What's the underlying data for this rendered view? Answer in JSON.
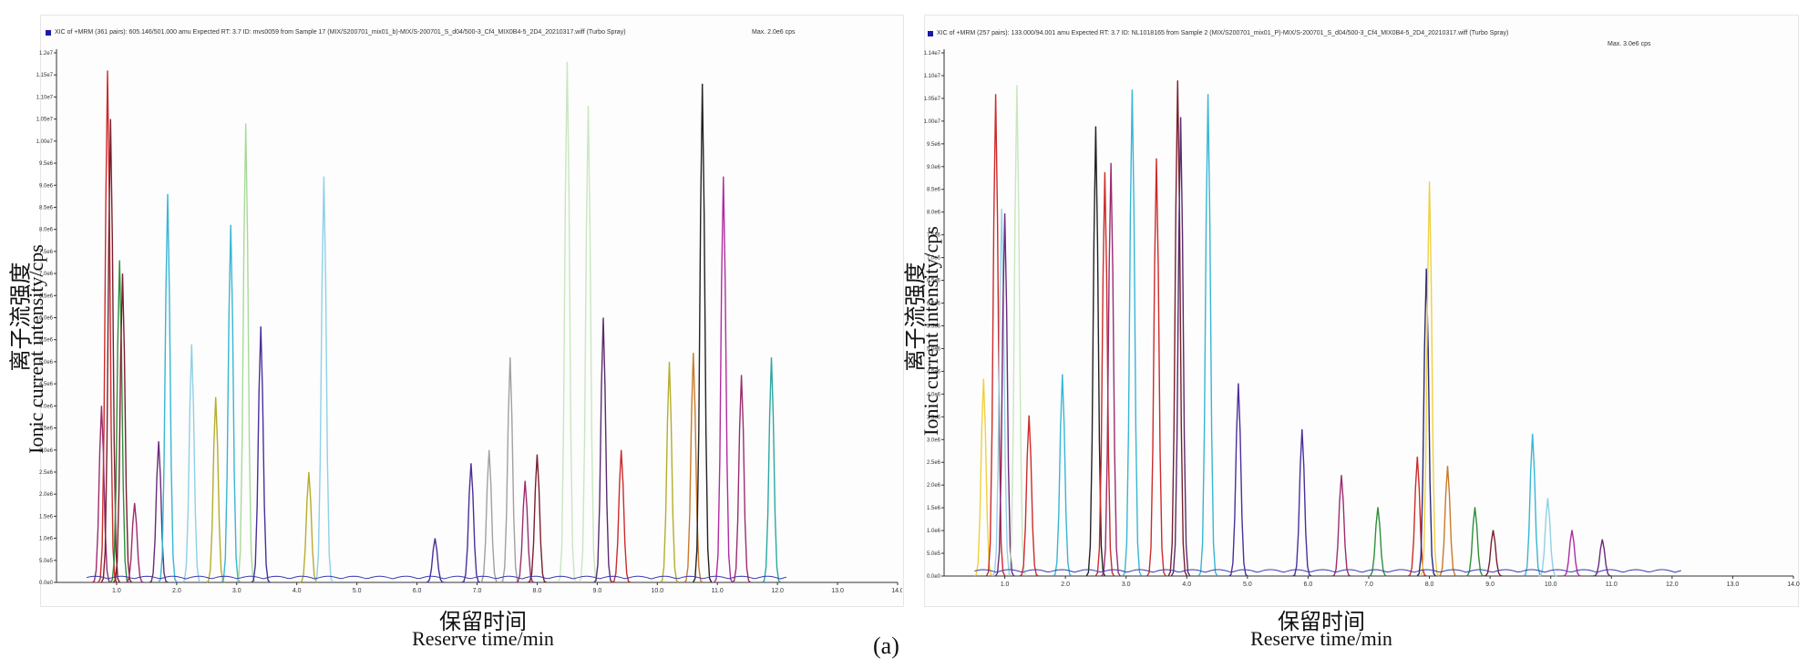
{
  "figure_label": "(a)",
  "chart_data": [
    {
      "type": "line",
      "header": "XIC of +MRM (361 pairs): 605.146/501.000 amu Expected RT: 3.7 ID: mvs0059 from Sample 17 (MIX/S200701_mix01_b)-MIX/S-200701_S_d04/500-3_Cf4_MIX0B4-5_2D4_20210317.wiff (Turbo Spray)",
      "max_note": "Max. 2.0e6 cps",
      "ylabel_cn": "离子流强度",
      "ylabel_en": "Ionic  current  intensity/cps",
      "xlabel_cn": "保留时间",
      "xlabel_en": "Reserve  time/min",
      "xlim": [
        0,
        14.0
      ],
      "ylim": [
        0,
        12000000.0
      ],
      "xticks": [
        "1.0",
        "2.0",
        "3.0",
        "4.0",
        "5.0",
        "6.0",
        "7.0",
        "8.0",
        "9.0",
        "10.0",
        "11.0",
        "12.0",
        "13.0",
        "14.0"
      ],
      "yticks": [
        "0.0e0",
        "5.0e5",
        "1.0e6",
        "1.5e6",
        "2.0e6",
        "2.5e6",
        "3.0e6",
        "3.5e6",
        "4.0e6",
        "4.5e6",
        "5.0e6",
        "5.5e6",
        "6.0e6",
        "6.5e6",
        "7.0e6",
        "7.5e6",
        "8.0e6",
        "8.5e6",
        "9.0e6",
        "9.5e6",
        "1.00e7",
        "1.05e7",
        "1.10e7",
        "1.15e7",
        "1.2e7"
      ],
      "peaks": [
        {
          "rt": 0.75,
          "height": 4000000.0,
          "color": "#9b2d6f"
        },
        {
          "rt": 0.85,
          "height": 11600000.0,
          "color": "#cc2b2b"
        },
        {
          "rt": 0.9,
          "height": 10500000.0,
          "color": "#7a1f2e"
        },
        {
          "rt": 1.05,
          "height": 7300000.0,
          "color": "#2f8f3a"
        },
        {
          "rt": 1.1,
          "height": 7000000.0,
          "color": "#7a1f2e"
        },
        {
          "rt": 1.3,
          "height": 1800000.0,
          "color": "#9b2d6f"
        },
        {
          "rt": 1.7,
          "height": 3200000.0,
          "color": "#6b2a7a"
        },
        {
          "rt": 1.85,
          "height": 8800000.0,
          "color": "#37b6d4"
        },
        {
          "rt": 2.25,
          "height": 5400000.0,
          "color": "#8fd0e6"
        },
        {
          "rt": 2.65,
          "height": 4200000.0,
          "color": "#b5ad2b"
        },
        {
          "rt": 2.9,
          "height": 8100000.0,
          "color": "#37b6d4"
        },
        {
          "rt": 3.15,
          "height": 10400000.0,
          "color": "#a9d99a"
        },
        {
          "rt": 3.4,
          "height": 5800000.0,
          "color": "#4a2f9a"
        },
        {
          "rt": 4.2,
          "height": 2500000.0,
          "color": "#b5ad2b"
        },
        {
          "rt": 4.45,
          "height": 9200000.0,
          "color": "#8fd0e6"
        },
        {
          "rt": 6.3,
          "height": 1000000.0,
          "color": "#4a2f9a"
        },
        {
          "rt": 6.9,
          "height": 2700000.0,
          "color": "#4a2f9a"
        },
        {
          "rt": 7.2,
          "height": 3000000.0,
          "color": "#a0a0a0"
        },
        {
          "rt": 7.55,
          "height": 5100000.0,
          "color": "#a0a0a0"
        },
        {
          "rt": 7.8,
          "height": 2300000.0,
          "color": "#9b2d6f"
        },
        {
          "rt": 8.0,
          "height": 2900000.0,
          "color": "#7a1f2e"
        },
        {
          "rt": 8.5,
          "height": 11800000.0,
          "color": "#c8e6c0"
        },
        {
          "rt": 8.85,
          "height": 10800000.0,
          "color": "#c8e6c0"
        },
        {
          "rt": 9.1,
          "height": 6000000.0,
          "color": "#5a2b6e"
        },
        {
          "rt": 9.4,
          "height": 3000000.0,
          "color": "#cc2b2b"
        },
        {
          "rt": 10.2,
          "height": 5000000.0,
          "color": "#b5ad2b"
        },
        {
          "rt": 10.6,
          "height": 5200000.0,
          "color": "#c87a2b"
        },
        {
          "rt": 10.75,
          "height": 11300000.0,
          "color": "#222222"
        },
        {
          "rt": 11.1,
          "height": 9200000.0,
          "color": "#b02ca0"
        },
        {
          "rt": 11.4,
          "height": 4700000.0,
          "color": "#9b2d6f"
        },
        {
          "rt": 11.9,
          "height": 5100000.0,
          "color": "#2aa8a0"
        }
      ]
    },
    {
      "type": "line",
      "header": "XIC of +MRM (257 pairs): 133.000/94.001 amu Expected RT: 3.7 ID: NL1018165 from Sample 2 (MIX/S200701_mix01_P)-MIX/S-200701_S_d04/500-3_Cf4_MIX0B4-5_2D4_20210317.wiff (Turbo Spray)",
      "max_note": "Max. 3.0e6 cps",
      "ylabel_cn": "离子流强度",
      "ylabel_en": "Ionic  current  intensity/cps",
      "xlabel_cn": "保留时间",
      "xlabel_en": "Reserve  time/min",
      "xlim": [
        0,
        14.0
      ],
      "ylim": [
        0,
        11400000.0
      ],
      "xticks": [
        "1.0",
        "2.0",
        "3.0",
        "4.0",
        "5.0",
        "6.0",
        "7.0",
        "8.0",
        "9.0",
        "10.0",
        "11.0",
        "12.0",
        "13.0",
        "14.0"
      ],
      "yticks": [
        "0.0e0",
        "5.0e5",
        "1.0e6",
        "1.5e6",
        "2.0e6",
        "2.5e6",
        "3.0e6",
        "3.5e6",
        "4.0e6",
        "4.5e6",
        "5.0e6",
        "5.5e6",
        "6.0e6",
        "6.5e6",
        "7.0e6",
        "7.5e6",
        "8.0e6",
        "8.5e6",
        "9.0e6",
        "9.5e6",
        "1.00e7",
        "1.05e7",
        "1.10e7",
        "1.14e7"
      ],
      "peaks": [
        {
          "rt": 0.65,
          "height": 4300000.0,
          "color": "#f0d040"
        },
        {
          "rt": 0.85,
          "height": 10500000.0,
          "color": "#cc2b2b"
        },
        {
          "rt": 0.95,
          "height": 8000000.0,
          "color": "#9bd0e8"
        },
        {
          "rt": 1.0,
          "height": 7900000.0,
          "color": "#6b2a7a"
        },
        {
          "rt": 1.2,
          "height": 10700000.0,
          "color": "#c8e6c0"
        },
        {
          "rt": 1.4,
          "height": 3500000.0,
          "color": "#cc2b2b"
        },
        {
          "rt": 1.95,
          "height": 4400000.0,
          "color": "#37b6d4"
        },
        {
          "rt": 2.5,
          "height": 9800000.0,
          "color": "#222222"
        },
        {
          "rt": 2.65,
          "height": 8800000.0,
          "color": "#cc2b2b"
        },
        {
          "rt": 2.75,
          "height": 9000000.0,
          "color": "#9b2d6f"
        },
        {
          "rt": 3.1,
          "height": 10600000.0,
          "color": "#37b6d4"
        },
        {
          "rt": 3.5,
          "height": 9100000.0,
          "color": "#cc2b2b"
        },
        {
          "rt": 3.85,
          "height": 10800000.0,
          "color": "#7a1f2e"
        },
        {
          "rt": 3.9,
          "height": 10000000.0,
          "color": "#5a2b6e"
        },
        {
          "rt": 4.35,
          "height": 10500000.0,
          "color": "#37b6d4"
        },
        {
          "rt": 4.85,
          "height": 4200000.0,
          "color": "#4a2f9a"
        },
        {
          "rt": 5.9,
          "height": 3200000.0,
          "color": "#4a2f9a"
        },
        {
          "rt": 6.55,
          "height": 2200000.0,
          "color": "#9b2d6f"
        },
        {
          "rt": 7.15,
          "height": 1500000.0,
          "color": "#2f8f3a"
        },
        {
          "rt": 7.8,
          "height": 2600000.0,
          "color": "#cc2b2b"
        },
        {
          "rt": 7.95,
          "height": 6700000.0,
          "color": "#2b2b7a"
        },
        {
          "rt": 8.0,
          "height": 8600000.0,
          "color": "#f0d040"
        },
        {
          "rt": 8.3,
          "height": 2400000.0,
          "color": "#c87a2b"
        },
        {
          "rt": 8.75,
          "height": 1500000.0,
          "color": "#2f8f3a"
        },
        {
          "rt": 9.05,
          "height": 1000000.0,
          "color": "#7a1f2e"
        },
        {
          "rt": 9.7,
          "height": 3100000.0,
          "color": "#37b6d4"
        },
        {
          "rt": 9.95,
          "height": 1700000.0,
          "color": "#8fd0e6"
        },
        {
          "rt": 10.35,
          "height": 1000000.0,
          "color": "#b02ca0"
        },
        {
          "rt": 10.85,
          "height": 800000.0,
          "color": "#6b2a7a"
        }
      ]
    }
  ]
}
